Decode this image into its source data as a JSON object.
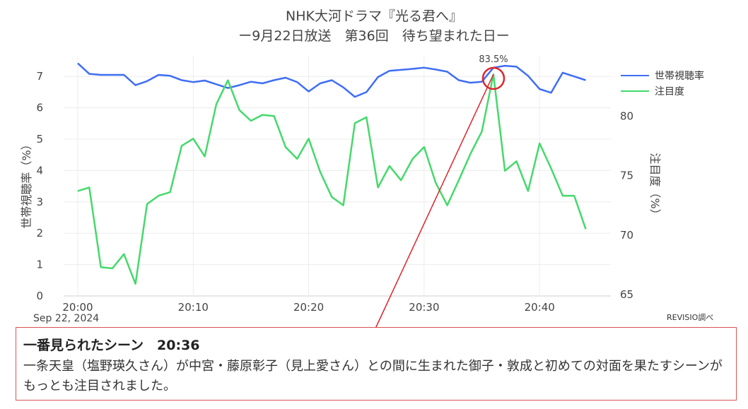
{
  "title": {
    "line1": "NHK大河ドラマ『光る君へ』",
    "line2": "ー9月22日放送　第36回　待ち望まれた日ー"
  },
  "source": "REVISIO調べ",
  "x_date_label": "Sep 22, 2024",
  "colors": {
    "rating": "#3f6ef5",
    "attention": "#45d96b",
    "annotation": "#e0242d"
  },
  "callout": {
    "title": "一番見られたシーン　20:36",
    "text": "一条天皇（塩野瑛久さん）が中宮・藤原彰子（見上愛さん）との間に生まれた御子・敦成と初めての対面を果たすシーンがもっとも注目されました。"
  },
  "chart_data": {
    "type": "line",
    "y_axis_left": {
      "label": "世帯視聴率（%）",
      "range": [
        0,
        7.5
      ],
      "ticks": [
        0,
        1,
        2,
        3,
        4,
        5,
        6,
        7
      ]
    },
    "y_axis_right": {
      "label": "注目度（%）",
      "range": [
        65,
        85
      ],
      "ticks": [
        65,
        70,
        75,
        80
      ]
    },
    "x_axis": {
      "tick_labels": [
        "20:00",
        "20:10",
        "20:20",
        "20:30",
        "20:40"
      ],
      "tick_minutes": [
        0,
        10,
        20,
        30,
        40
      ]
    },
    "grid": true,
    "legend_position": "top-right",
    "peak_annotation": {
      "minute": 36,
      "label": "83.5%"
    },
    "series": [
      {
        "name": "世帯視聴率",
        "axis": "left",
        "minutes": [
          0,
          1,
          2,
          3,
          4,
          5,
          6,
          7,
          8,
          9,
          10,
          11,
          12,
          13,
          14,
          15,
          16,
          17,
          18,
          19,
          20,
          21,
          22,
          23,
          24,
          25,
          26,
          27,
          28,
          29,
          30,
          31,
          32,
          33,
          34,
          35,
          36,
          37,
          38,
          39,
          40,
          41,
          42,
          43,
          44
        ],
        "values": [
          7.42,
          7.08,
          7.05,
          7.05,
          7.05,
          6.72,
          6.85,
          7.05,
          7.02,
          6.88,
          6.82,
          6.87,
          6.75,
          6.63,
          6.72,
          6.83,
          6.78,
          6.88,
          6.96,
          6.82,
          6.52,
          6.78,
          6.88,
          6.65,
          6.35,
          6.5,
          6.98,
          7.18,
          7.21,
          7.24,
          7.28,
          7.22,
          7.15,
          6.88,
          6.8,
          6.83,
          7.28,
          7.34,
          7.31,
          7.02,
          6.6,
          6.48,
          7.12,
          7.0,
          6.88
        ]
      },
      {
        "name": "注目度",
        "axis": "right",
        "minutes": [
          0,
          1,
          2,
          3,
          4,
          5,
          6,
          7,
          8,
          9,
          10,
          11,
          12,
          13,
          14,
          15,
          16,
          17,
          18,
          19,
          20,
          21,
          22,
          23,
          24,
          25,
          26,
          27,
          28,
          29,
          30,
          31,
          32,
          33,
          34,
          35,
          36,
          37,
          38,
          39,
          40,
          41,
          42,
          43,
          44
        ],
        "values": [
          73.7,
          74.0,
          67.3,
          67.2,
          68.4,
          65.9,
          72.6,
          73.3,
          73.6,
          77.5,
          78.1,
          76.6,
          81.0,
          83.0,
          80.5,
          79.6,
          80.1,
          80.0,
          77.4,
          76.4,
          78.1,
          75.3,
          73.2,
          72.5,
          79.4,
          79.9,
          74.0,
          75.8,
          74.6,
          76.4,
          77.4,
          74.4,
          72.5,
          74.6,
          76.8,
          78.7,
          83.5,
          75.4,
          76.2,
          73.7,
          77.7,
          75.6,
          73.3,
          73.3,
          70.5
        ]
      }
    ]
  }
}
